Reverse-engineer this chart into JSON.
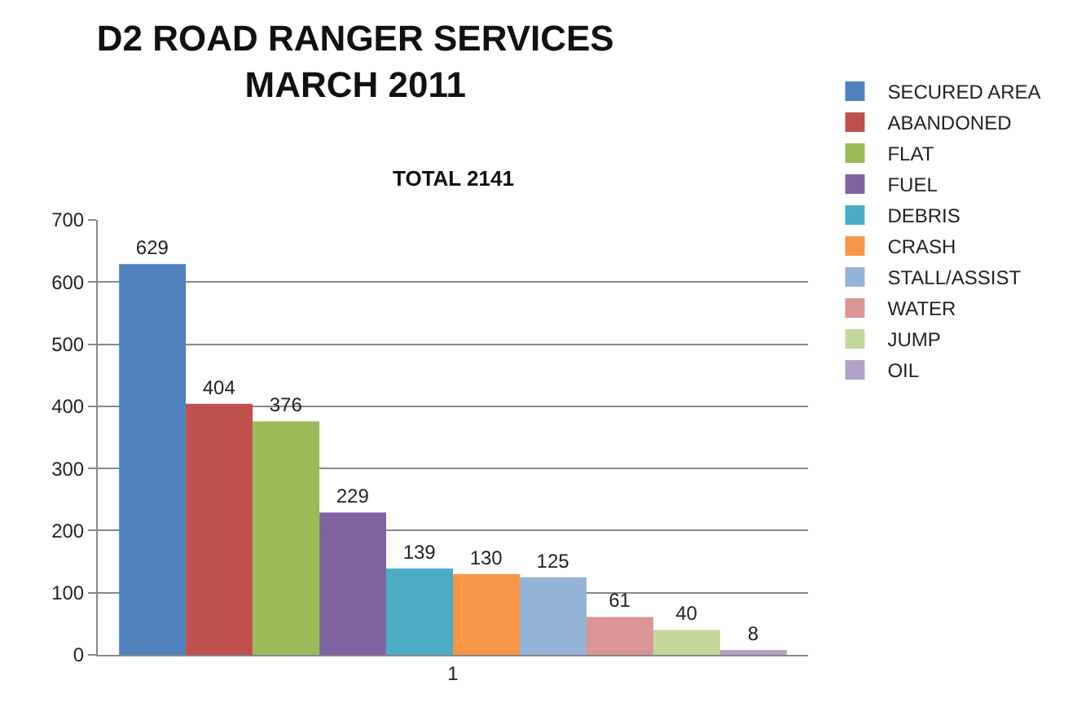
{
  "chart_data": {
    "type": "bar",
    "title": "D2 ROAD RANGER SERVICES\nMARCH 2011",
    "subtitle": "TOTAL 2141",
    "categories": [
      "1"
    ],
    "series": [
      {
        "name": "SECURED AREA",
        "color": "#4f81bd",
        "values": [
          629
        ]
      },
      {
        "name": "ABANDONED",
        "color": "#c0504d",
        "values": [
          404
        ]
      },
      {
        "name": "FLAT",
        "color": "#9bbb59",
        "values": [
          376
        ]
      },
      {
        "name": "FUEL",
        "color": "#8064a2",
        "values": [
          229
        ]
      },
      {
        "name": "DEBRIS",
        "color": "#4bacc6",
        "values": [
          139
        ]
      },
      {
        "name": "CRASH",
        "color": "#f79646",
        "values": [
          130
        ]
      },
      {
        "name": "STALL/ASSIST",
        "color": "#95b3d7",
        "values": [
          125
        ]
      },
      {
        "name": "WATER",
        "color": "#d99694",
        "values": [
          61
        ]
      },
      {
        "name": "JUMP",
        "color": "#c3d69b",
        "values": [
          40
        ]
      },
      {
        "name": "OIL",
        "color": "#b3a2c7",
        "values": [
          8
        ]
      }
    ],
    "ylim": [
      0,
      700
    ],
    "yticks": [
      0,
      100,
      200,
      300,
      400,
      500,
      600,
      700
    ],
    "grid": "y",
    "legend": "right",
    "data_labels": true
  }
}
